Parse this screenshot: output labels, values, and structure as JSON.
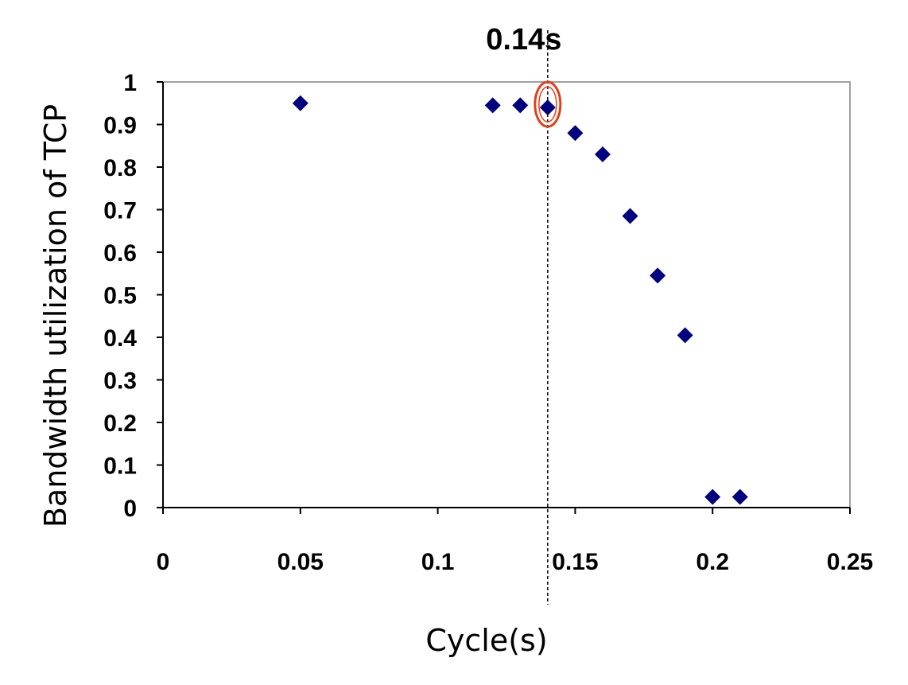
{
  "chart_data": {
    "type": "scatter",
    "title": "",
    "xlabel": "Cycle(s)",
    "ylabel": "Bandwidth utilization of TCP",
    "xlim": [
      0,
      0.25
    ],
    "ylim": [
      0,
      1
    ],
    "x_ticks": [
      "0",
      "0.05",
      "0.1",
      "0.15",
      "0.2",
      "0.25"
    ],
    "x_tick_values": [
      0,
      0.05,
      0.1,
      0.15,
      0.2,
      0.25
    ],
    "y_ticks": [
      "0",
      "0.1",
      "0.2",
      "0.3",
      "0.4",
      "0.5",
      "0.6",
      "0.7",
      "0.8",
      "0.9",
      "1"
    ],
    "y_tick_values": [
      0,
      0.1,
      0.2,
      0.3,
      0.4,
      0.5,
      0.6,
      0.7,
      0.8,
      0.9,
      1
    ],
    "grid": false,
    "legend": "none",
    "marker": "diamond",
    "marker_color": "#000080",
    "series": [
      {
        "points": [
          {
            "x": 0.05,
            "y": 0.95
          },
          {
            "x": 0.12,
            "y": 0.945
          },
          {
            "x": 0.13,
            "y": 0.945
          },
          {
            "x": 0.14,
            "y": 0.94
          },
          {
            "x": 0.15,
            "y": 0.88
          },
          {
            "x": 0.16,
            "y": 0.83
          },
          {
            "x": 0.17,
            "y": 0.685
          },
          {
            "x": 0.18,
            "y": 0.545
          },
          {
            "x": 0.19,
            "y": 0.405
          },
          {
            "x": 0.2,
            "y": 0.025
          },
          {
            "x": 0.21,
            "y": 0.025
          }
        ]
      }
    ],
    "annotation": {
      "label": "0.14s",
      "x": 0.14,
      "line_style": "dashed",
      "highlight_y": 0.94,
      "highlight_color": "#e0401a"
    }
  }
}
